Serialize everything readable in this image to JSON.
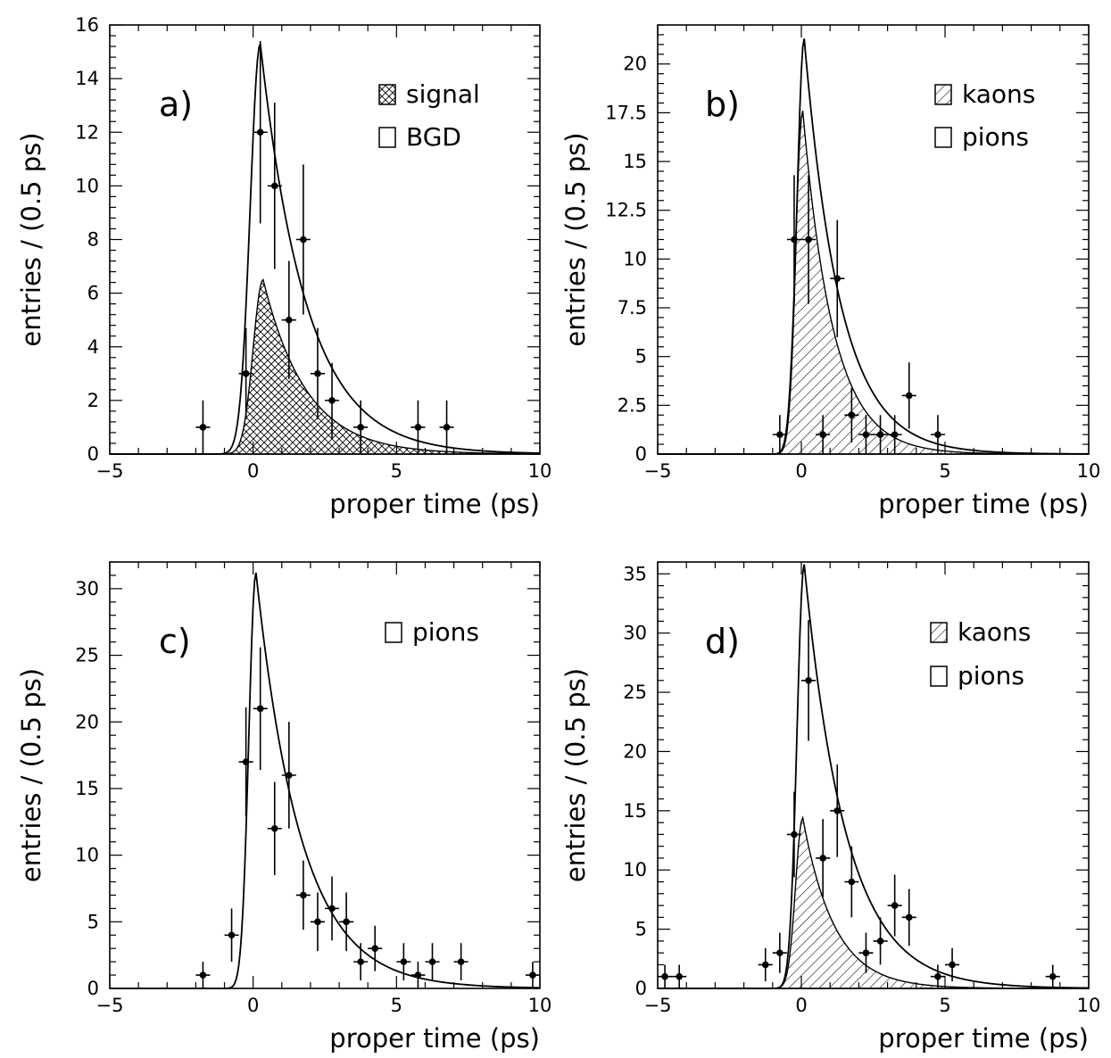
{
  "chart_data": [
    {
      "id": "a",
      "type": "histogram",
      "panel_label": "a)",
      "xlabel": "proper time (ps)",
      "ylabel": "entries / (0.5 ps)",
      "xlim": [
        -5,
        10
      ],
      "ylim": [
        0,
        16
      ],
      "x_ticks": [
        -5,
        0,
        5,
        10
      ],
      "y_ticks": [
        0,
        2,
        4,
        6,
        8,
        10,
        12,
        14,
        16
      ],
      "y_tick_labels": [
        "0",
        "2",
        "4",
        "6",
        "8",
        "10",
        "12",
        "14",
        "16"
      ],
      "legend": [
        {
          "label": "signal",
          "style": "crosshatch"
        },
        {
          "label": "BGD",
          "style": "open"
        }
      ],
      "curves": [
        {
          "style": "open",
          "peak_x": 0.25,
          "peak_y": 15.3,
          "rise_sigma": 0.35,
          "tau": 1.6
        },
        {
          "style": "crosshatch",
          "peak_x": 0.35,
          "peak_y": 6.5,
          "rise_sigma": 0.35,
          "tau": 1.5
        }
      ],
      "points": [
        {
          "x": -1.75,
          "y": 1,
          "err": 1.0
        },
        {
          "x": -0.25,
          "y": 3,
          "err": 1.7
        },
        {
          "x": 0.25,
          "y": 12,
          "err": 3.4
        },
        {
          "x": 0.75,
          "y": 10,
          "err": 3.1
        },
        {
          "x": 1.25,
          "y": 5,
          "err": 2.2
        },
        {
          "x": 1.75,
          "y": 8,
          "err": 2.8
        },
        {
          "x": 2.25,
          "y": 3,
          "err": 1.7
        },
        {
          "x": 2.75,
          "y": 2,
          "err": 1.4
        },
        {
          "x": 3.75,
          "y": 1,
          "err": 1.0
        },
        {
          "x": 5.75,
          "y": 1,
          "err": 1.0
        },
        {
          "x": 6.75,
          "y": 1,
          "err": 1.0
        }
      ]
    },
    {
      "id": "b",
      "type": "histogram",
      "panel_label": "b)",
      "xlabel": "proper time (ps)",
      "ylabel": "entries / (0.5 ps)",
      "xlim": [
        -5,
        10
      ],
      "ylim": [
        0,
        22
      ],
      "x_ticks": [
        -5,
        0,
        5,
        10
      ],
      "y_ticks": [
        0,
        2.5,
        5,
        7.5,
        10,
        12.5,
        15,
        17.5,
        20
      ],
      "y_tick_labels": [
        "0",
        "2.5",
        "5",
        "7.5",
        "10",
        "12.5",
        "15",
        "17.5",
        "20"
      ],
      "legend": [
        {
          "label": "kaons",
          "style": "hatch"
        },
        {
          "label": "pions",
          "style": "open"
        }
      ],
      "curves": [
        {
          "style": "open",
          "peak_x": 0.1,
          "peak_y": 21.3,
          "rise_sigma": 0.25,
          "tau": 1.25
        },
        {
          "style": "hatch",
          "peak_x": 0.05,
          "peak_y": 17.6,
          "rise_sigma": 0.25,
          "tau": 1.05
        }
      ],
      "points": [
        {
          "x": -0.75,
          "y": 1,
          "err": 1.0
        },
        {
          "x": -0.25,
          "y": 11,
          "err": 3.3
        },
        {
          "x": 0.25,
          "y": 11,
          "err": 3.3
        },
        {
          "x": 0.75,
          "y": 1,
          "err": 1.0
        },
        {
          "x": 1.25,
          "y": 9,
          "err": 3.0
        },
        {
          "x": 1.75,
          "y": 2,
          "err": 1.4
        },
        {
          "x": 2.25,
          "y": 1,
          "err": 1.0
        },
        {
          "x": 2.75,
          "y": 1,
          "err": 1.0
        },
        {
          "x": 3.25,
          "y": 1,
          "err": 1.0
        },
        {
          "x": 3.75,
          "y": 3,
          "err": 1.7
        },
        {
          "x": 4.75,
          "y": 1,
          "err": 1.0
        }
      ]
    },
    {
      "id": "c",
      "type": "histogram",
      "panel_label": "c)",
      "xlabel": "proper time (ps)",
      "ylabel": "entries / (0.5 ps)",
      "xlim": [
        -5,
        10
      ],
      "ylim": [
        0,
        32
      ],
      "x_ticks": [
        -5,
        0,
        5,
        10
      ],
      "y_ticks": [
        0,
        5,
        10,
        15,
        20,
        25,
        30
      ],
      "y_tick_labels": [
        "0",
        "5",
        "10",
        "15",
        "20",
        "25",
        "30"
      ],
      "legend": [
        {
          "label": "pions",
          "style": "open"
        }
      ],
      "curves": [
        {
          "style": "open",
          "peak_x": 0.1,
          "peak_y": 31.2,
          "rise_sigma": 0.25,
          "tau": 1.55
        }
      ],
      "points": [
        {
          "x": -1.75,
          "y": 1,
          "err": 1.0
        },
        {
          "x": -0.75,
          "y": 4,
          "err": 2.0
        },
        {
          "x": -0.25,
          "y": 17,
          "err": 4.1
        },
        {
          "x": 0.25,
          "y": 21,
          "err": 4.6
        },
        {
          "x": 0.75,
          "y": 12,
          "err": 3.5
        },
        {
          "x": 1.25,
          "y": 16,
          "err": 4.0
        },
        {
          "x": 1.75,
          "y": 7,
          "err": 2.6
        },
        {
          "x": 2.25,
          "y": 5,
          "err": 2.2
        },
        {
          "x": 2.75,
          "y": 6,
          "err": 2.4
        },
        {
          "x": 3.25,
          "y": 5,
          "err": 2.2
        },
        {
          "x": 3.75,
          "y": 2,
          "err": 1.4
        },
        {
          "x": 4.25,
          "y": 3,
          "err": 1.7
        },
        {
          "x": 5.25,
          "y": 2,
          "err": 1.4
        },
        {
          "x": 5.75,
          "y": 1,
          "err": 1.0
        },
        {
          "x": 6.25,
          "y": 2,
          "err": 1.4
        },
        {
          "x": 7.25,
          "y": 2,
          "err": 1.4
        },
        {
          "x": 9.75,
          "y": 1,
          "err": 1.0
        }
      ]
    },
    {
      "id": "d",
      "type": "histogram",
      "panel_label": "d)",
      "xlabel": "proper time (ps)",
      "ylabel": "entries / (0.5 ps)",
      "xlim": [
        -5,
        10
      ],
      "ylim": [
        0,
        36
      ],
      "x_ticks": [
        -5,
        0,
        5,
        10
      ],
      "y_ticks": [
        0,
        5,
        10,
        15,
        20,
        25,
        30,
        35
      ],
      "y_tick_labels": [
        "0",
        "5",
        "10",
        "15",
        "20",
        "25",
        "30",
        "35"
      ],
      "legend": [
        {
          "label": "kaons",
          "style": "hatch"
        },
        {
          "label": "pions",
          "style": "open"
        }
      ],
      "curves": [
        {
          "style": "open",
          "peak_x": 0.1,
          "peak_y": 35.8,
          "rise_sigma": 0.25,
          "tau": 1.45
        },
        {
          "style": "hatch",
          "peak_x": 0.05,
          "peak_y": 14.4,
          "rise_sigma": 0.25,
          "tau": 1.1
        }
      ],
      "points": [
        {
          "x": -4.75,
          "y": 1,
          "err": 1.0
        },
        {
          "x": -4.25,
          "y": 1,
          "err": 1.0
        },
        {
          "x": -1.25,
          "y": 2,
          "err": 1.4
        },
        {
          "x": -0.75,
          "y": 3,
          "err": 1.7
        },
        {
          "x": -0.25,
          "y": 13,
          "err": 3.6
        },
        {
          "x": 0.25,
          "y": 26,
          "err": 5.1
        },
        {
          "x": 0.75,
          "y": 11,
          "err": 3.3
        },
        {
          "x": 1.25,
          "y": 15,
          "err": 3.9
        },
        {
          "x": 1.75,
          "y": 9,
          "err": 3.0
        },
        {
          "x": 2.25,
          "y": 3,
          "err": 1.7
        },
        {
          "x": 2.75,
          "y": 4,
          "err": 2.0
        },
        {
          "x": 3.25,
          "y": 7,
          "err": 2.6
        },
        {
          "x": 3.75,
          "y": 6,
          "err": 2.4
        },
        {
          "x": 4.75,
          "y": 1,
          "err": 1.0
        },
        {
          "x": 5.25,
          "y": 2,
          "err": 1.4
        },
        {
          "x": 8.75,
          "y": 1,
          "err": 1.0
        }
      ]
    }
  ]
}
